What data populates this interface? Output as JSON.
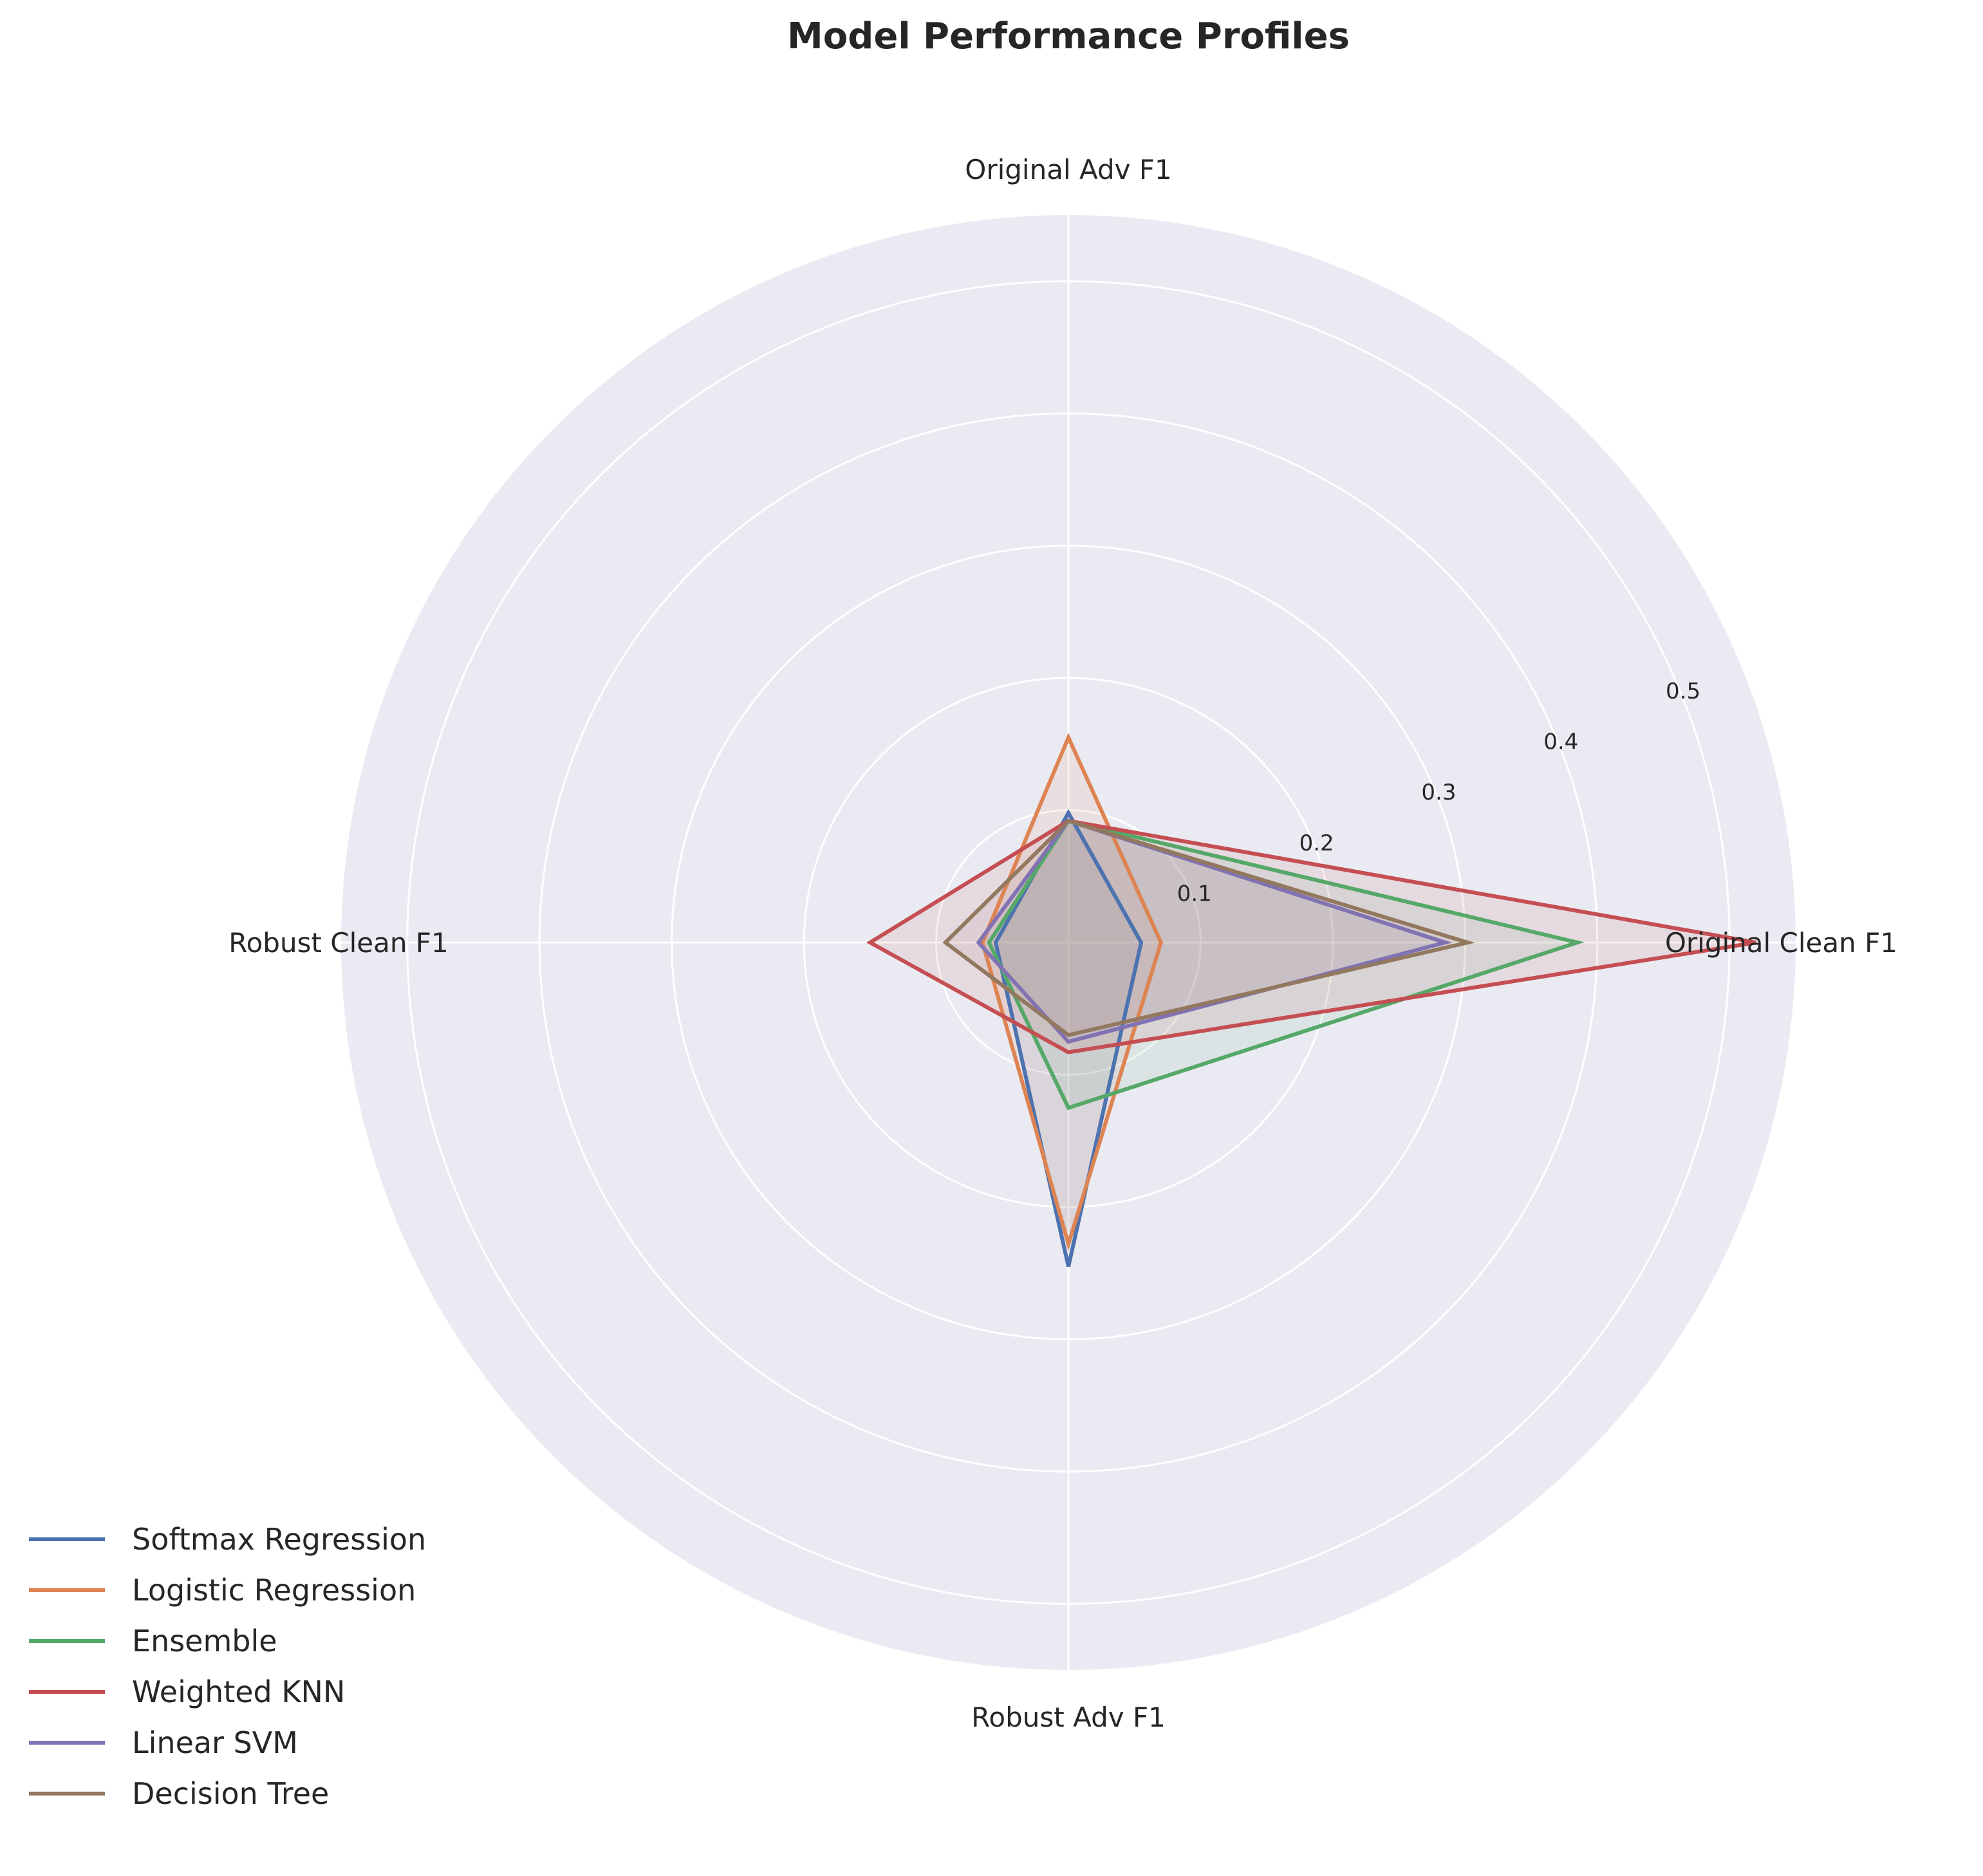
{
  "chart_data": {
    "type": "radar",
    "title": "Model Performance Profiles",
    "axes": [
      "Original Clean F1",
      "Original Adv F1",
      "Robust Clean F1",
      "Robust Adv F1"
    ],
    "rlim": [
      0,
      0.55
    ],
    "rticks": [
      0.1,
      0.2,
      0.3,
      0.4,
      0.5
    ],
    "rtick_labels": [
      "0.1",
      "0.2",
      "0.3",
      "0.4",
      "0.5"
    ],
    "grid": true,
    "legend_position": "lower-left",
    "series": [
      {
        "name": "Softmax Regression",
        "color": "#4C72B0",
        "values": [
          0.055,
          0.098,
          0.055,
          0.245
        ]
      },
      {
        "name": "Logistic Regression",
        "color": "#DD8452",
        "values": [
          0.07,
          0.155,
          0.065,
          0.228
        ]
      },
      {
        "name": "Ensemble",
        "color": "#55A868",
        "values": [
          0.385,
          0.092,
          0.06,
          0.125
        ]
      },
      {
        "name": "Weighted KNN",
        "color": "#C44E52",
        "values": [
          0.52,
          0.092,
          0.15,
          0.083
        ]
      },
      {
        "name": "Linear SVM",
        "color": "#8172B3",
        "values": [
          0.285,
          0.092,
          0.068,
          0.075
        ]
      },
      {
        "name": "Decision Tree",
        "color": "#937860",
        "values": [
          0.302,
          0.092,
          0.093,
          0.07
        ]
      }
    ]
  }
}
